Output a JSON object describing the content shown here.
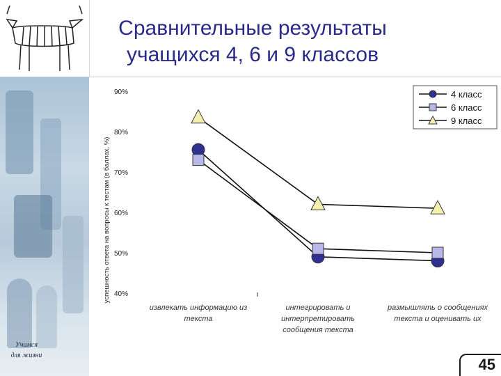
{
  "slide": {
    "title_line1": "Сравнительные результаты",
    "title_line2": "учащихся 4, 6 и 9 классов",
    "tagline_line1": "Учимся",
    "tagline_line2": "для жизни",
    "page_number": "45"
  },
  "chart_data": {
    "type": "line",
    "title": "",
    "ylabel": "успешность ответа на вопросы к тестам (в баллах, %)",
    "xlabel": "",
    "ylim": [
      40,
      90
    ],
    "ytick_step": 10,
    "y_tick_suffix": "%",
    "grid": false,
    "legend_position": "top-right",
    "categories": [
      [
        "извлекать информацию из",
        "текста"
      ],
      [
        "интегрировать и",
        "интерпретировать",
        "сообщения текста"
      ],
      [
        "размышлять о сообщениях",
        "текста и оценивать их"
      ]
    ],
    "series": [
      {
        "name": "4 класс",
        "marker": "circle",
        "color": "#2e3192",
        "values": [
          75.5,
          49,
          48
        ]
      },
      {
        "name": "6 класс",
        "marker": "square",
        "color": "#b8b8e8",
        "values": [
          73,
          51,
          50
        ]
      },
      {
        "name": "9 класс",
        "marker": "triangle",
        "color": "#f4f0b0",
        "values": [
          83.5,
          62,
          61
        ]
      }
    ]
  }
}
